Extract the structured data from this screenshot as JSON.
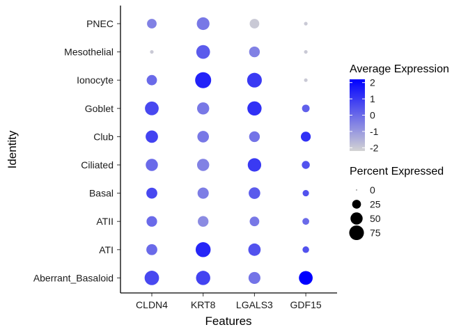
{
  "chart_data": {
    "type": "dotplot",
    "xlabel": "Features",
    "ylabel": "Identity",
    "features": [
      "CLDN4",
      "KRT8",
      "LGALS3",
      "GDF15"
    ],
    "identities": [
      "PNEC",
      "Mesothelial",
      "Ionocyte",
      "Goblet",
      "Club",
      "Ciliated",
      "Basal",
      "ATII",
      "ATI",
      "Aberrant_Basaloid"
    ],
    "avg_expression": [
      [
        -0.5,
        -0.3,
        -2.0,
        -2.0
      ],
      [
        -2.0,
        0.3,
        -0.5,
        -2.0
      ],
      [
        0.0,
        1.5,
        1.0,
        -2.0
      ],
      [
        0.7,
        -0.3,
        1.2,
        0.2
      ],
      [
        0.8,
        -0.3,
        -0.2,
        1.2
      ],
      [
        0.0,
        -0.5,
        1.0,
        0.5
      ],
      [
        0.7,
        -0.4,
        0.3,
        0.5
      ],
      [
        0.0,
        -0.7,
        -0.3,
        0.0
      ],
      [
        0.0,
        1.4,
        0.5,
        0.5
      ],
      [
        0.7,
        0.8,
        -0.2,
        2.3
      ]
    ],
    "pct_expressed": [
      [
        30,
        55,
        30,
        3
      ],
      [
        3,
        65,
        38,
        3
      ],
      [
        35,
        90,
        75,
        3
      ],
      [
        65,
        50,
        70,
        18
      ],
      [
        52,
        45,
        38,
        32
      ],
      [
        50,
        50,
        62,
        20
      ],
      [
        40,
        42,
        45,
        12
      ],
      [
        37,
        38,
        30,
        14
      ],
      [
        40,
        78,
        52,
        13
      ],
      [
        72,
        70,
        48,
        65
      ]
    ],
    "color_legend": {
      "title": "Average Expression",
      "ticks": [
        "2",
        "1",
        "0",
        "-1",
        "-2"
      ],
      "range": [
        -2.2,
        2.2
      ],
      "low_color": "#d3d3d3",
      "high_color": "#0000ff"
    },
    "size_legend": {
      "title": "Percent Expressed",
      "labels": [
        "0",
        "25",
        "50",
        "75"
      ],
      "values": [
        0,
        25,
        50,
        75
      ]
    }
  }
}
